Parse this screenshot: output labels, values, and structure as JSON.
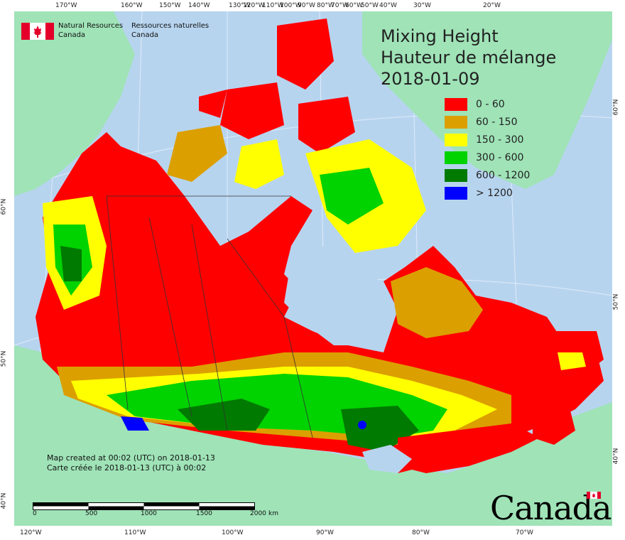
{
  "title": {
    "line1": "Mixing Height",
    "line2": "Hauteur de mélange",
    "date": "2018-01-09"
  },
  "legend": [
    {
      "label": "0 - 60",
      "color": "#ff0000"
    },
    {
      "label": "60 - 150",
      "color": "#dc9f00"
    },
    {
      "label": "150 - 300",
      "color": "#ffff00"
    },
    {
      "label": "300 - 600",
      "color": "#00d300"
    },
    {
      "label": "600 - 1200",
      "color": "#007a00"
    },
    {
      "label": "> 1200",
      "color": "#0000ff"
    }
  ],
  "agency": {
    "en_line1": "Natural Resources",
    "en_line2": "Canada",
    "fr_line1": "Ressources naturelles",
    "fr_line2": "Canada"
  },
  "footer": {
    "created_en": "Map created at 00:02 (UTC) on 2018-01-13",
    "created_fr": "Carte créée le 2018-01-13 (UTC) à 00:02"
  },
  "scale_bar": {
    "ticks": [
      "0",
      "500",
      "1000",
      "1500",
      "2000"
    ],
    "unit": "km"
  },
  "wordmark": "Canada",
  "graticule": {
    "top": [
      "170°W",
      "160°W",
      "150°W",
      "140°W",
      "130°W",
      "120°W",
      "110°W",
      "100°W",
      "90°W",
      "80°W",
      "70°W",
      "60°W",
      "50°W",
      "40°W",
      "30°W",
      "20°W"
    ],
    "bottom": [
      "120°W",
      "110°W",
      "100°W",
      "90°W",
      "80°W",
      "70°W"
    ],
    "left": [
      "60°N",
      "50°N",
      "40°N"
    ],
    "right": [
      "60°N",
      "50°N",
      "40°N"
    ]
  },
  "colors": {
    "ocean": "#b7d4ef",
    "foreign_land": "#9fe3b7"
  }
}
